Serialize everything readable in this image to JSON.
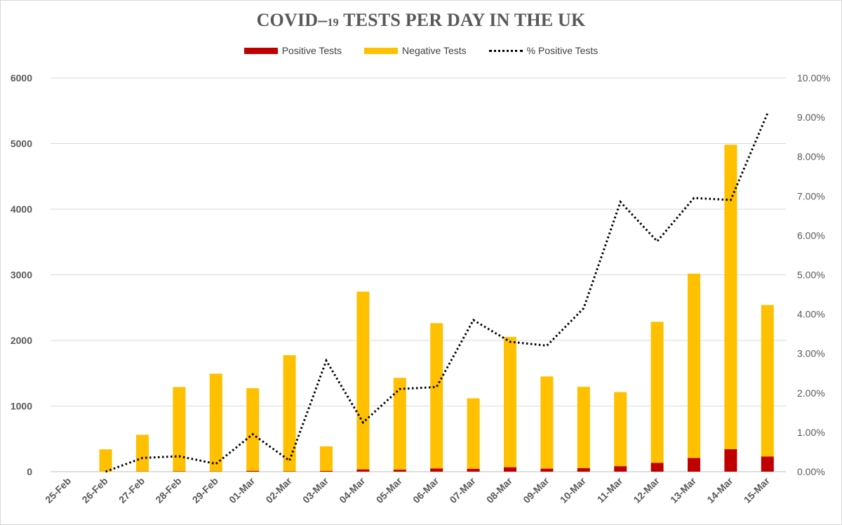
{
  "chart_data": {
    "type": "bar",
    "title_main": "COVID",
    "title_dash": "–",
    "title_sub": "19",
    "title_rest": " TESTS PER DAY IN THE UK",
    "categories": [
      "25-Feb",
      "26-Feb",
      "27-Feb",
      "28-Feb",
      "29-Feb",
      "01-Mar",
      "02-Mar",
      "03-Mar",
      "04-Mar",
      "05-Mar",
      "06-Mar",
      "07-Mar",
      "08-Mar",
      "09-Mar",
      "10-Mar",
      "11-Mar",
      "12-Mar",
      "13-Mar",
      "14-Mar",
      "15-Mar"
    ],
    "series": [
      {
        "name": "Positive Tests",
        "kind": "bar",
        "stack": true,
        "axis": "left",
        "color": "#c00000",
        "values": [
          0,
          0,
          2,
          5,
          3,
          12,
          5,
          11,
          34,
          30,
          48,
          43,
          67,
          46,
          53,
          83,
          134,
          208,
          342,
          230
        ]
      },
      {
        "name": "Negative Tests",
        "kind": "bar",
        "stack": true,
        "axis": "left",
        "color": "#ffc000",
        "values": [
          0,
          340,
          560,
          1285,
          1490,
          1260,
          1770,
          375,
          2710,
          1400,
          2215,
          1075,
          1985,
          1405,
          1240,
          1130,
          2150,
          2810,
          4640,
          2310
        ]
      },
      {
        "name": "% Positive Tests",
        "kind": "line",
        "axis": "right",
        "color": "#000000",
        "values": [
          null,
          0.0,
          0.35,
          0.39,
          0.2,
          0.95,
          0.28,
          2.82,
          1.25,
          2.1,
          2.15,
          3.85,
          3.3,
          3.2,
          4.15,
          6.85,
          5.85,
          6.95,
          6.9,
          9.1
        ]
      }
    ],
    "y_left": {
      "min": 0,
      "max": 6000,
      "ticks": [
        "0",
        "1000",
        "2000",
        "3000",
        "4000",
        "5000",
        "6000"
      ]
    },
    "y_right": {
      "min": 0,
      "max": 10,
      "ticks": [
        "0.00%",
        "1.00%",
        "2.00%",
        "3.00%",
        "4.00%",
        "5.00%",
        "6.00%",
        "7.00%",
        "8.00%",
        "9.00%",
        "10.00%"
      ]
    },
    "grid": true,
    "legend_position": "top",
    "colors": {
      "gridline": "#d9d9d9",
      "tick_text": "#595959"
    }
  }
}
